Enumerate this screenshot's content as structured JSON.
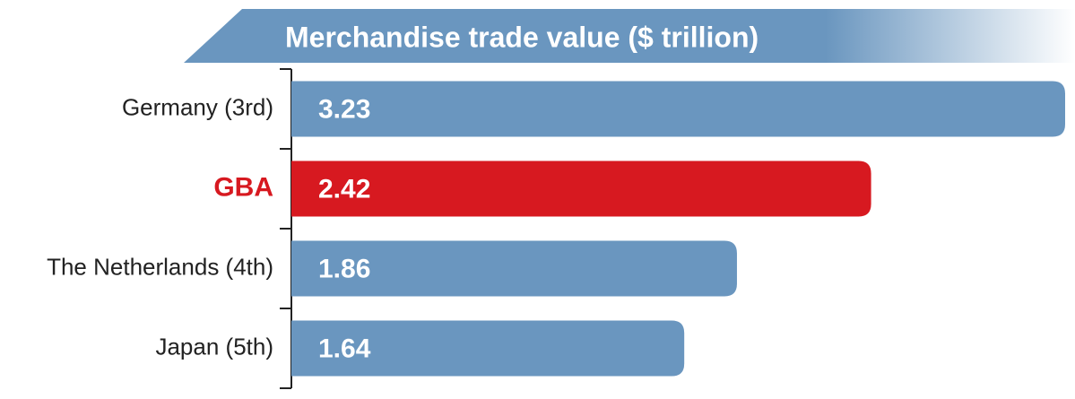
{
  "chart_data": {
    "type": "bar",
    "orientation": "horizontal",
    "title": "Merchandise trade value ($ trillion)",
    "categories": [
      "Germany (3rd)",
      "GBA",
      "The Netherlands (4th)",
      "Japan (5th)"
    ],
    "values": [
      3.23,
      2.42,
      1.86,
      1.64
    ],
    "colors": [
      "#6a96bf",
      "#d71920",
      "#6a96bf",
      "#6a96bf"
    ],
    "label_colors": [
      "#222222",
      "#d71920",
      "#222222",
      "#222222"
    ]
  }
}
